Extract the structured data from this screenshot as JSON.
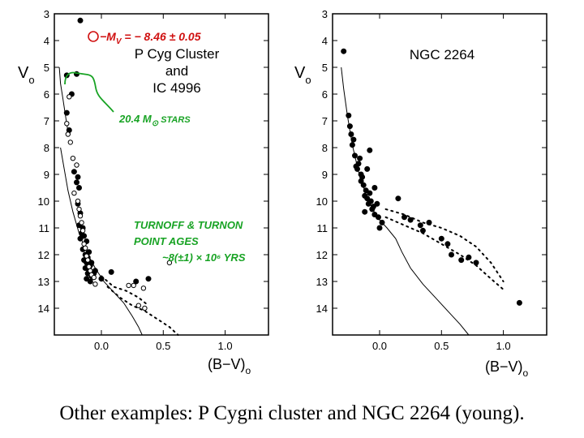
{
  "caption": "Other examples: P Cygni cluster and NGC 2264 (young).",
  "colors": {
    "ink": "#000000",
    "annotation": "#18a324",
    "paper": "#ffffff"
  },
  "chart_data": [
    {
      "type": "scatter",
      "title": "P Cyg Cluster",
      "title_line2": "and",
      "title_line3": "IC 4996",
      "xlabel": "(B−V)",
      "xlabel_sub": "o",
      "ylabel": "V",
      "ylabel_sub": "o",
      "xlim": [
        -0.38,
        1.35
      ],
      "ylim": [
        3,
        15
      ],
      "y_inverted": true,
      "xticks": [
        "0.0",
        "0.5",
        "1.0"
      ],
      "yticks": [
        "3",
        "4",
        "5",
        "6",
        "7",
        "8",
        "9",
        "10",
        "11",
        "12",
        "13",
        "14"
      ],
      "annotations": {
        "mv_label": "−M",
        "mv_sub": "V",
        "mv_value": " = − 8.46 ± 0.05",
        "mass_label": "20.4 M",
        "mass_sub": "⊙",
        "mass_suffix": "  STARS",
        "turnoff_line1": "TURNOFF  &  TURNON",
        "turnoff_line2": "POINT  AGES",
        "turnoff_line3": "~8(±1) × 10⁶  YRS"
      },
      "series": [
        {
          "name": "filled",
          "x": [
            -0.28,
            -0.2,
            -0.17,
            -0.24,
            -0.28,
            -0.26,
            -0.22,
            -0.19,
            -0.2,
            -0.18,
            -0.19,
            -0.17,
            -0.18,
            -0.15,
            -0.16,
            -0.17,
            -0.14,
            -0.12,
            -0.15,
            -0.1,
            -0.13,
            -0.11,
            -0.14,
            -0.12,
            -0.09,
            -0.13,
            -0.1,
            -0.11,
            -0.08,
            -0.12,
            -0.1,
            -0.06,
            -0.08,
            -0.05,
            -0.09,
            0.0,
            0.08,
            0.28,
            0.38
          ],
          "y": [
            5.3,
            5.25,
            3.25,
            6.0,
            6.7,
            7.35,
            8.9,
            9.1,
            9.3,
            9.5,
            10.1,
            10.45,
            10.9,
            11.0,
            11.2,
            11.4,
            11.3,
            11.5,
            11.8,
            11.9,
            12.0,
            12.1,
            12.2,
            12.3,
            12.4,
            12.5,
            12.6,
            12.7,
            12.8,
            12.9,
            12.5,
            12.7,
            12.3,
            12.6,
            13.0,
            12.9,
            12.65,
            13.0,
            12.9
          ]
        },
        {
          "name": "open",
          "x": [
            -0.26,
            -0.28,
            -0.27,
            -0.25,
            -0.23,
            -0.2,
            -0.22,
            -0.19,
            -0.18,
            -0.17,
            -0.16,
            -0.15,
            -0.14,
            -0.13,
            -0.12,
            -0.11,
            -0.1,
            -0.09,
            -0.08,
            -0.06,
            -0.05,
            0.22,
            0.26,
            0.34,
            0.3,
            0.35,
            0.55
          ],
          "y": [
            6.1,
            7.1,
            7.5,
            7.8,
            8.4,
            8.65,
            9.7,
            10.0,
            10.3,
            10.55,
            10.8,
            11.1,
            11.6,
            11.75,
            12.05,
            12.2,
            12.45,
            12.6,
            12.75,
            12.85,
            13.1,
            13.15,
            13.15,
            13.25,
            13.9,
            14.0,
            12.3
          ]
        }
      ],
      "isochrone": {
        "x": [
          -0.33,
          -0.3,
          -0.27,
          -0.23,
          -0.18,
          -0.12,
          -0.05,
          0.02,
          0.1,
          0.18,
          0.25,
          0.3,
          0.33
        ],
        "y": [
          8.0,
          8.8,
          9.6,
          10.4,
          11.2,
          11.9,
          12.5,
          13.0,
          13.4,
          13.8,
          14.3,
          14.7,
          15.0
        ]
      },
      "upper_dotted": {
        "x": [
          0.0,
          0.1,
          0.2,
          0.3,
          0.38
        ],
        "y": [
          12.8,
          13.2,
          13.35,
          13.6,
          13.9
        ]
      },
      "lower_dotted": {
        "x": [
          0.05,
          0.15,
          0.25,
          0.35,
          0.45,
          0.55,
          0.62
        ],
        "y": [
          13.2,
          13.6,
          13.9,
          14.1,
          14.4,
          14.7,
          15.0
        ]
      },
      "upper_track": {
        "x": [
          -0.34,
          -0.33,
          -0.31,
          -0.29,
          -0.27
        ],
        "y": [
          5.0,
          5.6,
          6.2,
          6.8,
          7.4
        ]
      }
    },
    {
      "type": "scatter",
      "title": "NGC 2264",
      "xlabel": "(B−V)",
      "xlabel_sub": "o",
      "ylabel": "V",
      "ylabel_sub": "o",
      "xlim": [
        -0.38,
        1.35
      ],
      "ylim": [
        3,
        15
      ],
      "y_inverted": true,
      "xticks": [
        "0.0",
        "0.5",
        "1.0"
      ],
      "yticks": [
        "3",
        "4",
        "5",
        "6",
        "7",
        "8",
        "9",
        "10",
        "11",
        "12",
        "13",
        "14"
      ],
      "series": [
        {
          "name": "filled",
          "x": [
            -0.29,
            -0.25,
            -0.24,
            -0.23,
            -0.22,
            -0.21,
            -0.2,
            -0.19,
            -0.18,
            -0.17,
            -0.16,
            -0.15,
            -0.14,
            -0.13,
            -0.12,
            -0.11,
            -0.1,
            -0.09,
            -0.08,
            -0.07,
            -0.06,
            -0.05,
            -0.04,
            -0.02,
            -0.01,
            0.0,
            0.15,
            0.2,
            0.25,
            0.33,
            0.35,
            0.4,
            0.5,
            0.55,
            0.58,
            0.66,
            0.72,
            0.78,
            1.13,
            -0.1,
            -0.04,
            -0.12,
            -0.08,
            0.02,
            -0.15
          ],
          "y": [
            4.4,
            6.8,
            7.2,
            7.5,
            7.9,
            7.7,
            8.3,
            8.7,
            8.8,
            8.6,
            8.4,
            9.0,
            9.1,
            9.4,
            9.8,
            9.6,
            9.9,
            10.1,
            9.7,
            10.0,
            10.3,
            10.2,
            10.5,
            10.1,
            10.6,
            11.0,
            9.9,
            10.6,
            10.7,
            10.9,
            11.1,
            10.8,
            11.4,
            11.6,
            12.0,
            12.2,
            12.1,
            12.3,
            13.8,
            8.8,
            9.5,
            10.4,
            8.1,
            10.8,
            9.25
          ]
        }
      ],
      "isochrone": {
        "x": [
          -0.31,
          -0.29,
          -0.26,
          -0.22,
          -0.17,
          -0.1,
          -0.02,
          0.06,
          0.13,
          0.18,
          0.25,
          0.35,
          0.45,
          0.55,
          0.65,
          0.72
        ],
        "y": [
          5.0,
          5.8,
          6.8,
          7.9,
          8.9,
          9.9,
          10.6,
          11.0,
          11.4,
          11.9,
          12.5,
          13.1,
          13.6,
          14.1,
          14.6,
          15.0
        ]
      },
      "upper_dotted": {
        "x": [
          0.05,
          0.2,
          0.35,
          0.5,
          0.65,
          0.78,
          0.9,
          1.0
        ],
        "y": [
          10.3,
          10.5,
          10.8,
          11.0,
          11.3,
          11.7,
          12.3,
          13.0
        ]
      },
      "lower_dotted": {
        "x": [
          0.05,
          0.2,
          0.35,
          0.5,
          0.65,
          0.78,
          0.9,
          1.0
        ],
        "y": [
          10.6,
          10.9,
          11.2,
          11.6,
          12.0,
          12.4,
          12.9,
          13.3
        ]
      }
    }
  ]
}
